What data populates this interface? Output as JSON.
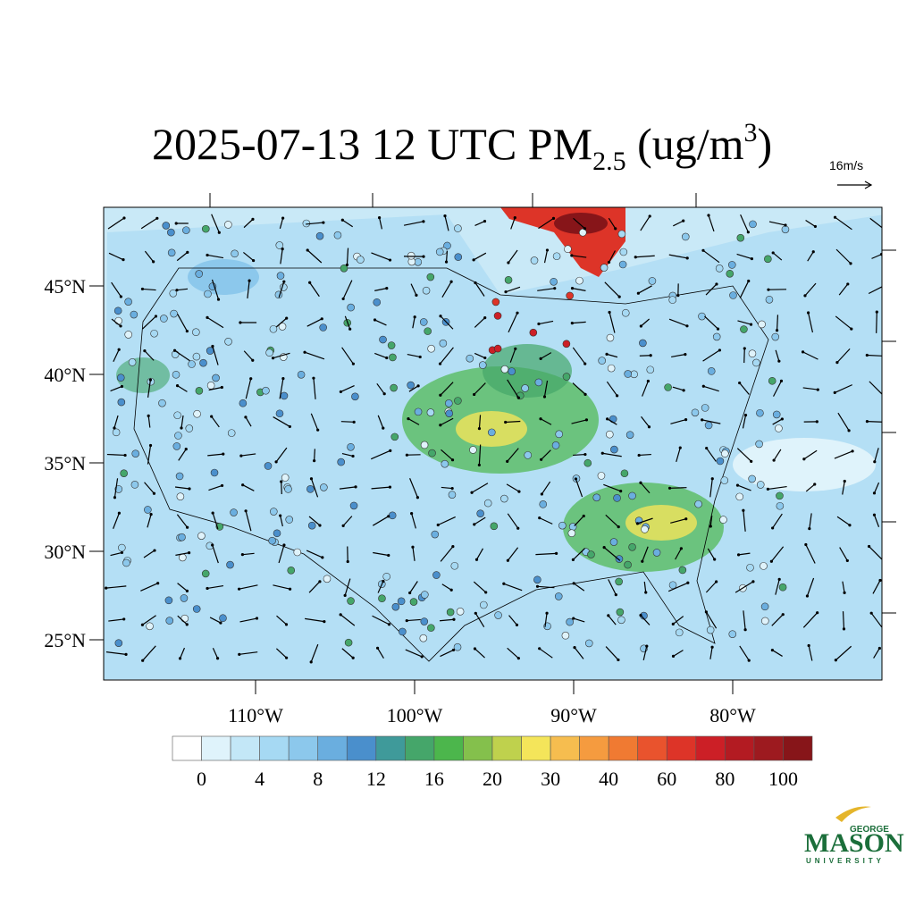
{
  "title": {
    "main": "2025-07-13 12 UTC PM",
    "subscript": "2.5",
    "unit_open": " (ug/m",
    "superscript": "3",
    "unit_close": ")"
  },
  "wind_reference": "16m/s",
  "map": {
    "lat_ticks": [
      {
        "value": 45,
        "label": "45°N"
      },
      {
        "value": 40,
        "label": "40°N"
      },
      {
        "value": 35,
        "label": "35°N"
      },
      {
        "value": 30,
        "label": "30°N"
      },
      {
        "value": 25,
        "label": "25°N"
      }
    ],
    "lon_ticks": [
      {
        "value": -110,
        "label": "110°W"
      },
      {
        "value": -100,
        "label": "100°W"
      },
      {
        "value": -90,
        "label": "90°W"
      },
      {
        "value": -80,
        "label": "80°W"
      }
    ]
  },
  "colorbar": {
    "colors": [
      "#ffffff",
      "#dff3fb",
      "#c3e7f7",
      "#a6d9f3",
      "#8cc8ec",
      "#6aaedf",
      "#4a8fcc",
      "#3f9a9a",
      "#45a66a",
      "#4cb64c",
      "#84c04c",
      "#bfd14d",
      "#f4e55a",
      "#f6bd4f",
      "#f59b3f",
      "#f07a32",
      "#e9532d",
      "#dd3428",
      "#cc1f26",
      "#b31b22",
      "#9d1a1f",
      "#871519"
    ],
    "labels": [
      0,
      4,
      8,
      12,
      16,
      20,
      30,
      40,
      60,
      80,
      100
    ]
  },
  "logo": {
    "top": "GEORGE",
    "middle": "MASON",
    "bottom": "UNIVERSITY"
  }
}
